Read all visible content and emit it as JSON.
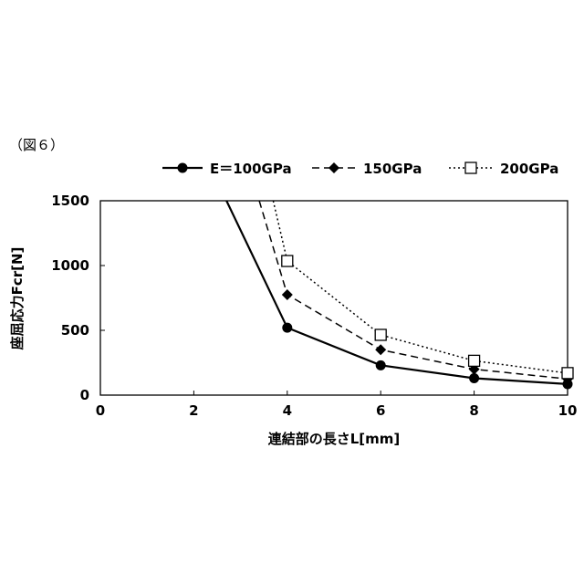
{
  "figure_label": "（図６）",
  "chart_data": {
    "type": "line",
    "title": "",
    "xlabel": "連結部の長さL[mm]",
    "ylabel": "座屈応力Fcr[N]",
    "xlim": [
      0,
      10
    ],
    "ylim": [
      0,
      1500
    ],
    "xticks": [
      0,
      2,
      4,
      6,
      8,
      10
    ],
    "yticks": [
      0,
      500,
      1000,
      1500
    ],
    "grid": false,
    "legend_position": "top",
    "series": [
      {
        "name": "E＝100GPa",
        "line_style": "solid",
        "marker": "circle",
        "color": "#000000",
        "points": [
          [
            2.7,
            1500
          ],
          [
            4,
            520
          ],
          [
            6,
            230
          ],
          [
            8,
            130
          ],
          [
            10,
            85
          ]
        ]
      },
      {
        "name": "150GPa",
        "line_style": "dashed",
        "marker": "diamond",
        "color": "#000000",
        "points": [
          [
            3.4,
            1500
          ],
          [
            4,
            775
          ],
          [
            6,
            350
          ],
          [
            8,
            200
          ],
          [
            10,
            125
          ]
        ]
      },
      {
        "name": "200GPa",
        "line_style": "dotted",
        "marker": "square-open",
        "color": "#000000",
        "points": [
          [
            3.7,
            1500
          ],
          [
            4,
            1035
          ],
          [
            6,
            465
          ],
          [
            8,
            265
          ],
          [
            10,
            170
          ]
        ]
      }
    ]
  }
}
